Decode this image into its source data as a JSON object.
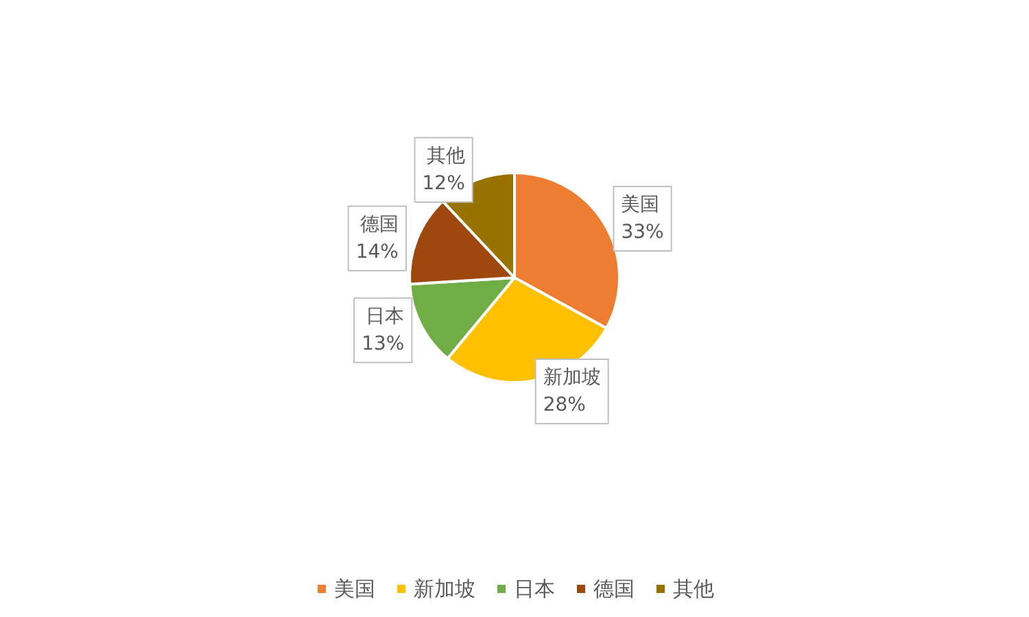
{
  "chart_data": {
    "type": "pie",
    "categories": [
      "美国",
      "新加坡",
      "日本",
      "德国",
      "其他"
    ],
    "values": [
      33,
      28,
      13,
      14,
      12
    ],
    "value_labels": [
      "33%",
      "28%",
      "13%",
      "14%",
      "12%"
    ],
    "colors": [
      "#ed7d31",
      "#ffc000",
      "#70ad47",
      "#9e480e",
      "#997300"
    ],
    "legend": "bottom"
  }
}
